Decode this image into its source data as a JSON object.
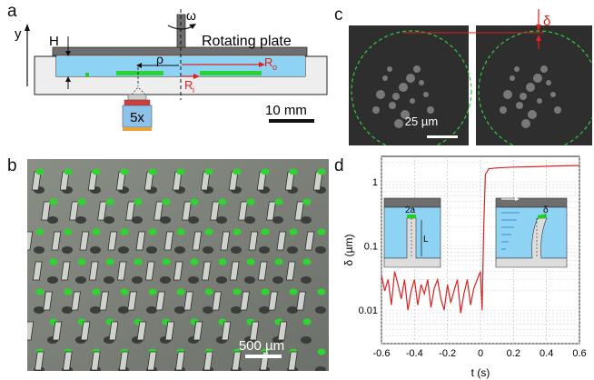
{
  "panels": {
    "a": "a",
    "b": "b",
    "c": "c",
    "d": "d"
  },
  "panel_a": {
    "axis_y": "y",
    "label_H": "H",
    "label_omega": "ω",
    "label_rotating_plate": "Rotating plate",
    "label_rho": "ρ",
    "label_Ro": "R",
    "label_Ro_sub": "o",
    "label_Ri": "R",
    "label_Ri_sub": "i",
    "objective": "5x",
    "scale_bar": "10 mm"
  },
  "panel_b": {
    "scale_bar": "500 µm"
  },
  "panel_c": {
    "scale_bar": "25 µm",
    "label_delta": "δ"
  },
  "panel_d": {
    "inset_2a": "2a",
    "inset_L": "L",
    "inset_delta": "δ"
  },
  "colors": {
    "fluid": "#8fd3f4",
    "plate": "#6e6e6e",
    "pillar_tip": "#1fd11f",
    "red": "#e02020",
    "green_circle": "#2ecc40"
  },
  "chart_data": {
    "type": "line",
    "xlabel": "t (s)",
    "ylabel": "δ (µm)",
    "xlim": [
      -0.6,
      0.6
    ],
    "ylim_log": [
      0.003,
      2.5
    ],
    "yscale": "log",
    "grid": true,
    "x_ticks": [
      "-0.6",
      "-0.4",
      "-0.2",
      "0",
      "0.2",
      "0.4",
      "0.6"
    ],
    "y_ticks": [
      "0.01",
      "0.1",
      "1"
    ],
    "y_tick_values": [
      0.01,
      0.1,
      1
    ],
    "x_tick_values": [
      -0.6,
      -0.4,
      -0.2,
      0,
      0.2,
      0.4,
      0.6
    ],
    "series": [
      {
        "color": "#e02020",
        "x": [
          -0.6,
          -0.58,
          -0.56,
          -0.54,
          -0.52,
          -0.5,
          -0.48,
          -0.46,
          -0.44,
          -0.42,
          -0.4,
          -0.38,
          -0.36,
          -0.34,
          -0.32,
          -0.3,
          -0.28,
          -0.26,
          -0.24,
          -0.22,
          -0.2,
          -0.18,
          -0.16,
          -0.14,
          -0.12,
          -0.1,
          -0.08,
          -0.06,
          -0.04,
          -0.02,
          0.0,
          0.01,
          0.02,
          0.03,
          0.05,
          0.1,
          0.2,
          0.3,
          0.4,
          0.5,
          0.6
        ],
        "y": [
          0.035,
          0.02,
          0.03,
          0.012,
          0.04,
          0.025,
          0.015,
          0.03,
          0.01,
          0.02,
          0.03,
          0.012,
          0.025,
          0.018,
          0.03,
          0.011,
          0.022,
          0.03,
          0.015,
          0.01,
          0.025,
          0.013,
          0.02,
          0.03,
          0.009,
          0.018,
          0.03,
          0.012,
          0.022,
          0.03,
          0.04,
          0.01,
          0.2,
          1.3,
          1.6,
          1.65,
          1.7,
          1.72,
          1.75,
          1.78,
          1.8
        ]
      }
    ]
  }
}
